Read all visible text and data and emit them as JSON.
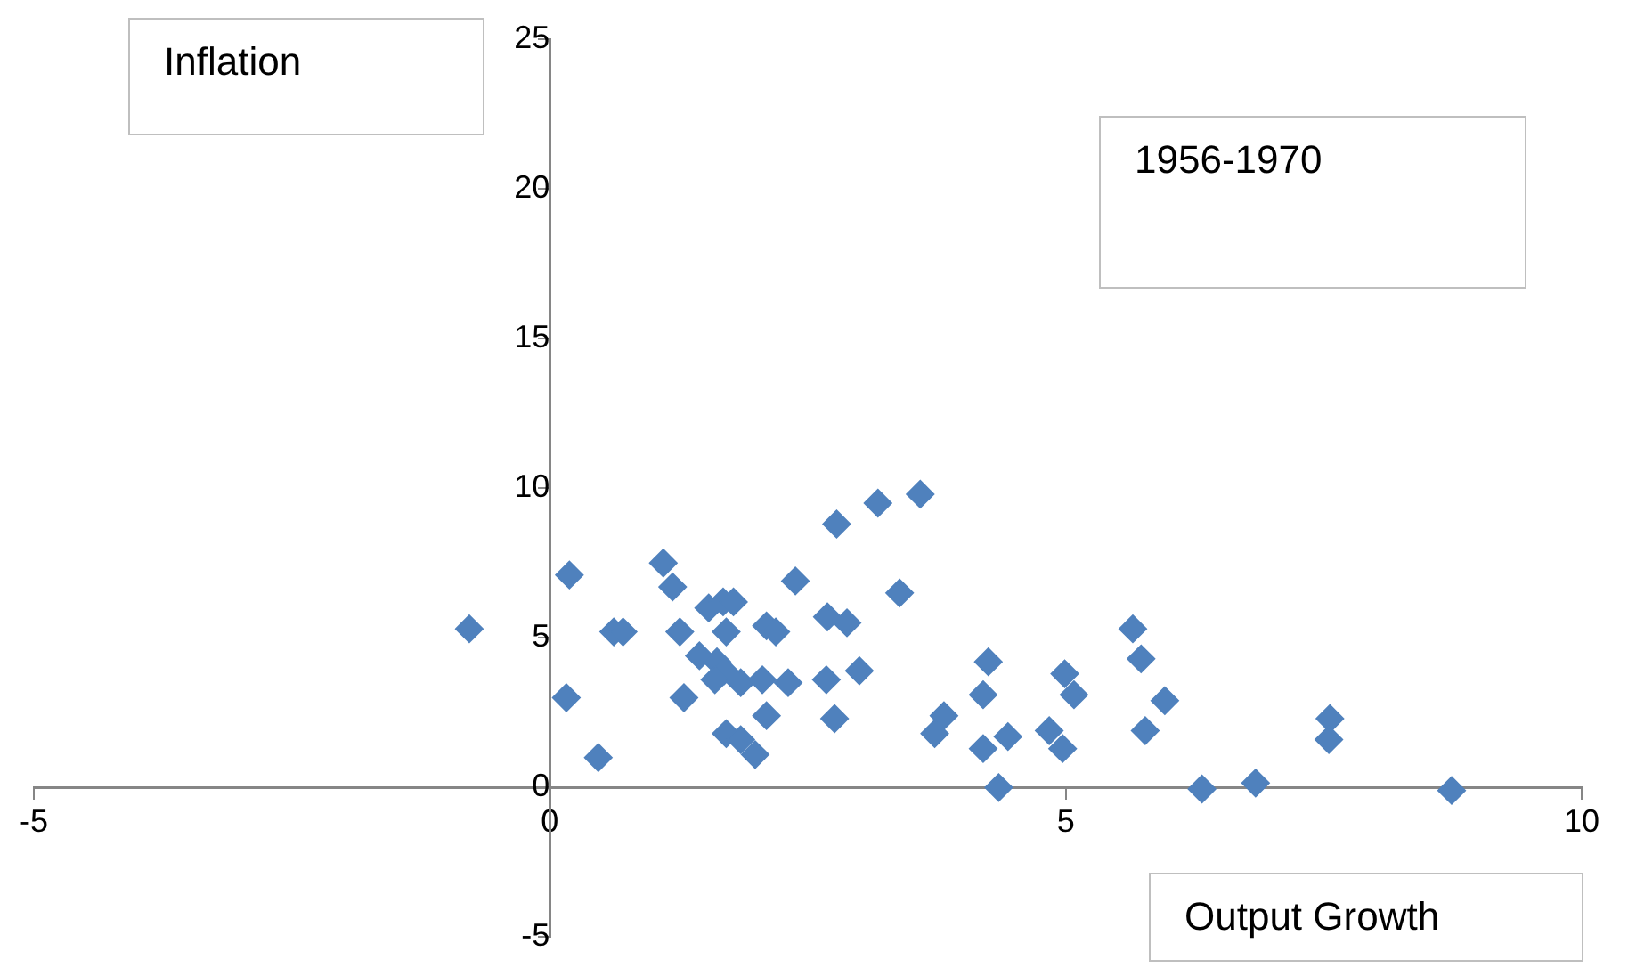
{
  "chart_data": {
    "type": "scatter",
    "title": "1956-1970",
    "xlabel": "Output Growth",
    "ylabel": "Inflation",
    "marker": "diamond",
    "grid": false,
    "legend": false,
    "xlim": [
      -5,
      10
    ],
    "xticks": [
      -5,
      0,
      5,
      10
    ],
    "ylim": [
      -5,
      25
    ],
    "yticks": [
      -5,
      0,
      5,
      10,
      15,
      20,
      25
    ],
    "series": [
      {
        "color": "#4f81bd",
        "x": [
          -0.78,
          0.19,
          0.16,
          0.47,
          0.62,
          0.71,
          1.1,
          1.19,
          1.26,
          1.3,
          1.54,
          1.68,
          1.78,
          1.71,
          1.45,
          1.62,
          1.69,
          1.6,
          1.85,
          2.06,
          2.31,
          1.71,
          1.85,
          1.99,
          2.1,
          2.1,
          2.19,
          2.38,
          2.69,
          2.88,
          2.68,
          2.76,
          3.0,
          2.78,
          3.18,
          3.59,
          3.39,
          5.65,
          5.73,
          5.96,
          5.77,
          4.25,
          4.2,
          3.82,
          3.73,
          4.2,
          4.44,
          4.35,
          4.99,
          5.08,
          4.84,
          4.97,
          6.32,
          6.84,
          7.56,
          7.55,
          8.74
        ],
        "values": [
          5.3,
          7.1,
          3.0,
          1.0,
          5.2,
          5.2,
          7.5,
          6.7,
          5.2,
          3.0,
          6.0,
          6.2,
          6.2,
          5.2,
          4.4,
          4.2,
          3.9,
          3.6,
          3.5,
          3.6,
          3.5,
          1.8,
          1.6,
          1.1,
          2.4,
          5.4,
          5.2,
          6.9,
          5.7,
          5.5,
          3.6,
          2.3,
          3.9,
          8.8,
          9.5,
          9.8,
          6.5,
          5.3,
          4.3,
          2.9,
          1.9,
          4.2,
          3.1,
          2.4,
          1.8,
          1.3,
          1.7,
          0.0,
          3.8,
          3.1,
          1.9,
          1.3,
          -0.05,
          0.15,
          2.3,
          1.6,
          -0.1
        ]
      }
    ]
  }
}
